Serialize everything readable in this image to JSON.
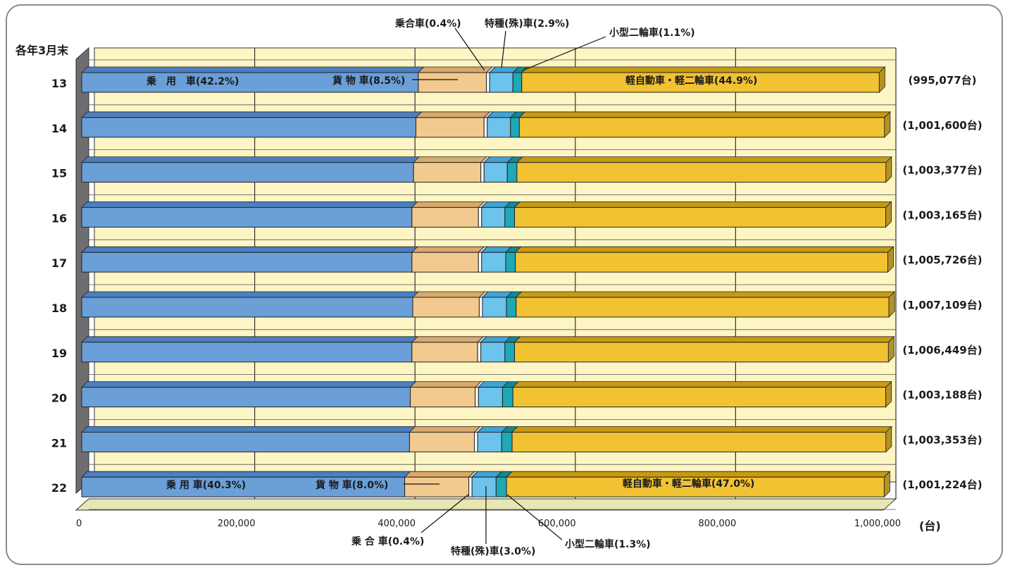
{
  "chart_data": {
    "type": "bar",
    "orientation": "horizontal",
    "stacked": true,
    "period_label": "各年3月末",
    "unit_label": "(台)",
    "xlim": [
      0,
      1000000
    ],
    "x_tick_labels": [
      "0",
      "200,000",
      "400,000",
      "600,000",
      "800,000",
      "1,000,000"
    ],
    "categories": [
      "13",
      "14",
      "15",
      "16",
      "17",
      "18",
      "19",
      "20",
      "21",
      "22"
    ],
    "totals": [
      995077,
      1001600,
      1003377,
      1003165,
      1005726,
      1007109,
      1006449,
      1003188,
      1003353,
      1001224
    ],
    "totals_labels": [
      "(995,077台)",
      "(1,001,600台)",
      "(1,003,377台)",
      "(1,003,165台)",
      "(1,005,726台)",
      "(1,007,109台)",
      "(1,006,449台)",
      "(1,003,188台)",
      "(1,003,353台)",
      "(1,001,224台)"
    ],
    "series": [
      {
        "name": "乗用車",
        "color": "#6a9fd8",
        "top_color": "#4b7fc0",
        "values": [
          420000,
          417000,
          414000,
          412000,
          412000,
          413000,
          412000,
          410000,
          409000,
          403000
        ]
      },
      {
        "name": "貨物車",
        "color": "#f2c98e",
        "top_color": "#d9a86a",
        "values": [
          85000,
          85000,
          84000,
          83000,
          83000,
          83000,
          82000,
          81000,
          81000,
          80000
        ]
      },
      {
        "name": "乗合車",
        "color": "#ffffff",
        "top_color": "#d8d8d8",
        "values": [
          4000,
          4000,
          4000,
          4000,
          4000,
          4000,
          4000,
          4000,
          4000,
          4000
        ]
      },
      {
        "name": "特種(殊)車",
        "color": "#6cc3ec",
        "top_color": "#3fa3d6",
        "values": [
          29000,
          29000,
          29000,
          29000,
          30000,
          30000,
          30000,
          30000,
          30000,
          30000
        ]
      },
      {
        "name": "小型二輪車",
        "color": "#1fa8b5",
        "top_color": "#148892",
        "values": [
          11000,
          11000,
          12000,
          12000,
          12000,
          12000,
          12000,
          13000,
          13000,
          13000
        ]
      },
      {
        "name": "軽自動車・軽二輪車",
        "color": "#f1c232",
        "top_color": "#c89a12",
        "values": [
          446077,
          455600,
          460377,
          463165,
          464726,
          465109,
          466449,
          465188,
          466353,
          471224
        ]
      }
    ],
    "annotations": {
      "top_row": {
        "passenger": "乗　用　車(42.2%)",
        "freight": "貨 物 車(8.5%)",
        "bus": "乗合車(0.4%)",
        "special": "特種(殊)車(2.9%)",
        "motorcycle": "小型二輪車(1.1%)",
        "kei": "軽自動車・軽二輪車(44.9%)"
      },
      "bottom_row": {
        "passenger": "乗 用 車(40.3%)",
        "freight": "貨 物 車(8.0%)",
        "bus": "乗 合 車(0.4%)",
        "special": "特種(殊)車(3.0%)",
        "motorcycle": "小型二輪車(1.3%)",
        "kei": "軽自動車・軽二輪車(47.0%)"
      }
    },
    "grid": true,
    "plot_background": "#fdf5c4",
    "floor_color": "#e7e7b4",
    "wall_color": "#6e6e6e"
  }
}
